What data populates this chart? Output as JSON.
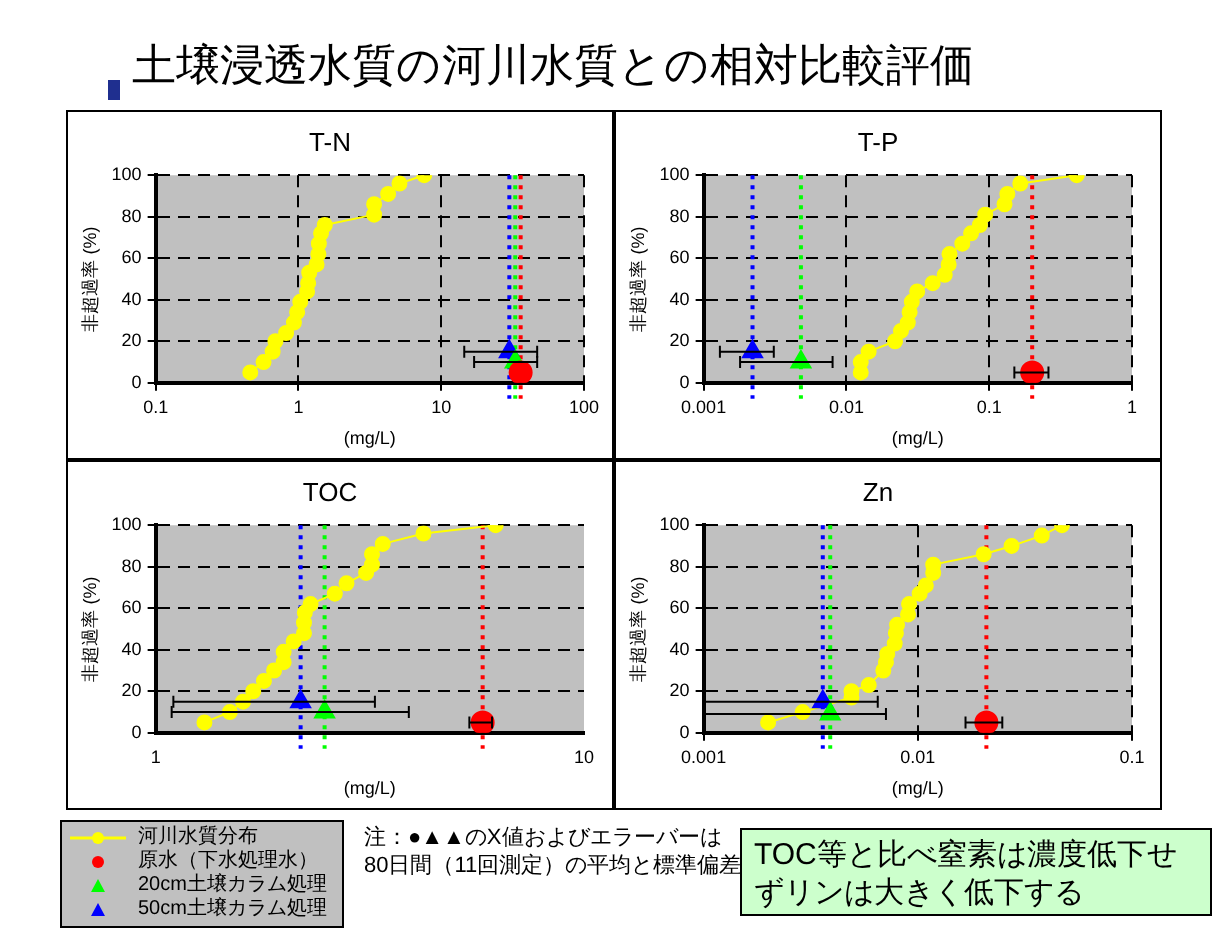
{
  "chart_data": [
    {
      "type": "other",
      "title": "土壌浸透水質の河川水質との相対比較評価",
      "annotations": [
        "注：●▲▲のX値およびエラーバーは80日間（11回測定）の平均と標準偏差",
        "TOC等と比べ窒素は濃度低下せずリンは大きく低下する"
      ]
    },
    {
      "type": "scatter",
      "title": "T-N",
      "xlabel": "(mg/L)",
      "ylabel": "非超過率 (%)",
      "log": "x",
      "xlim": [
        0.1,
        100
      ],
      "xticks": [
        0.1,
        1,
        10,
        100
      ],
      "ylim": [
        0,
        100
      ],
      "yticks": [
        0,
        20,
        40,
        60,
        80,
        100
      ],
      "grid": true,
      "legend": "bottom",
      "series": [
        {
          "name": "河川水質分布",
          "type": "line",
          "color": "#ffff00",
          "marker": "circle",
          "x": [
            0.46,
            0.57,
            0.66,
            0.69,
            0.82,
            0.93,
            0.98,
            1.03,
            1.15,
            1.17,
            1.19,
            1.34,
            1.38,
            1.39,
            1.44,
            1.53,
            3.39,
            3.39,
            4.25,
            5.1,
            7.6
          ],
          "values": [
            5,
            10,
            15,
            20,
            24,
            29,
            34,
            39,
            44,
            48,
            53,
            57,
            62,
            67,
            72,
            76,
            81,
            86,
            91,
            96,
            100
          ]
        },
        {
          "name": "原水（下水処理水）",
          "type": "scatter",
          "color": "#ff0000",
          "marker": "circle",
          "x": [
            36
          ],
          "values": [
            5
          ],
          "xerrors": [
            null
          ]
        },
        {
          "name": "20cm土壌カラム処理",
          "type": "scatter",
          "color": "#00ff00",
          "marker": "triangle",
          "x": [
            33
          ],
          "values": [
            10
          ],
          "xerrors": [
            [
              17,
              47
            ]
          ]
        },
        {
          "name": "50cm土壌カラム処理",
          "type": "scatter",
          "color": "#0000ff",
          "marker": "triangle",
          "x": [
            30
          ],
          "values": [
            15
          ],
          "xerrors": [
            [
              14.5,
              47
            ]
          ]
        }
      ],
      "ref_lines": [
        {
          "axis": "x",
          "value": 36,
          "color": "#ff0000",
          "line_style": "dotted"
        },
        {
          "axis": "x",
          "value": 33,
          "color": "#00ff00",
          "line_style": "dotted"
        },
        {
          "axis": "x",
          "value": 30,
          "color": "#0000ff",
          "line_style": "dotted"
        }
      ]
    },
    {
      "type": "scatter",
      "title": "T-P",
      "xlabel": "(mg/L)",
      "ylabel": "非超過率 (%)",
      "log": "x",
      "xlim": [
        0.001,
        1
      ],
      "xticks": [
        0.001,
        0.01,
        0.1,
        1
      ],
      "ylim": [
        0,
        100
      ],
      "yticks": [
        0,
        20,
        40,
        60,
        80,
        100
      ],
      "grid": true,
      "series": [
        {
          "type": "line",
          "color": "#ffff00",
          "marker": "circle",
          "x": [
            0.0126,
            0.0126,
            0.0143,
            0.0219,
            0.0241,
            0.0269,
            0.0277,
            0.0287,
            0.0313,
            0.0402,
            0.0488,
            0.052,
            0.0527,
            0.0648,
            0.0746,
            0.086,
            0.0937,
            0.128,
            0.134,
            0.165,
            0.41
          ],
          "values": [
            5,
            10,
            15,
            20,
            25,
            29,
            34,
            39,
            44,
            48,
            52,
            57,
            62,
            67,
            72,
            76,
            81,
            86,
            91,
            96,
            100
          ]
        },
        {
          "type": "scatter",
          "color": "#ff0000",
          "marker": "circle",
          "x": [
            0.2
          ],
          "values": [
            5
          ],
          "xerrors": [
            [
              0.15,
              0.26
            ]
          ]
        },
        {
          "type": "scatter",
          "color": "#00ff00",
          "marker": "triangle",
          "x": [
            0.0048
          ],
          "values": [
            10
          ],
          "xerrors": [
            [
              0.0018,
              0.008
            ]
          ]
        },
        {
          "type": "scatter",
          "color": "#0000ff",
          "marker": "triangle",
          "x": [
            0.0022
          ],
          "values": [
            15
          ],
          "xerrors": [
            [
              0.0013,
              0.0031
            ]
          ]
        }
      ],
      "ref_lines": [
        {
          "axis": "x",
          "value": 0.2,
          "color": "#ff0000",
          "line_style": "dotted"
        },
        {
          "axis": "x",
          "value": 0.0048,
          "color": "#00ff00",
          "line_style": "dotted"
        },
        {
          "axis": "x",
          "value": 0.0022,
          "color": "#0000ff",
          "line_style": "dotted"
        }
      ]
    },
    {
      "type": "scatter",
      "title": "TOC",
      "xlabel": "(mg/L)",
      "ylabel": "非超過率 (%)",
      "log": "x",
      "xlim": [
        1,
        10
      ],
      "xticks": [
        1,
        10
      ],
      "ylim": [
        0,
        100
      ],
      "yticks": [
        0,
        20,
        40,
        60,
        80,
        100
      ],
      "grid": "y",
      "series": [
        {
          "type": "line",
          "color": "#ffff00",
          "marker": "circle",
          "x": [
            1.3,
            1.49,
            1.6,
            1.69,
            1.79,
            1.89,
            1.99,
            1.99,
            2.1,
            2.22,
            2.22,
            2.23,
            2.3,
            2.62,
            2.79,
            3.1,
            3.2,
            3.2,
            3.39,
            4.22,
            6.22
          ],
          "values": [
            5,
            10,
            15,
            20,
            25,
            30,
            34,
            39,
            44,
            48,
            53,
            58,
            62,
            67,
            72,
            77,
            81,
            86,
            91,
            96,
            100
          ]
        },
        {
          "type": "scatter",
          "color": "#ff0000",
          "marker": "circle",
          "x": [
            5.8
          ],
          "values": [
            5
          ],
          "xerrors": [
            [
              5.4,
              6.1
            ]
          ]
        },
        {
          "type": "scatter",
          "color": "#00ff00",
          "marker": "triangle",
          "x": [
            2.48
          ],
          "values": [
            10
          ],
          "xerrors": [
            [
              1.09,
              3.9
            ]
          ]
        },
        {
          "type": "scatter",
          "color": "#0000ff",
          "marker": "triangle",
          "x": [
            2.18
          ],
          "values": [
            15
          ],
          "xerrors": [
            [
              1.1,
              3.25
            ]
          ]
        }
      ],
      "ref_lines": [
        {
          "axis": "x",
          "value": 5.8,
          "color": "#ff0000",
          "line_style": "dotted"
        },
        {
          "axis": "x",
          "value": 2.48,
          "color": "#00ff00",
          "line_style": "dotted"
        },
        {
          "axis": "x",
          "value": 2.18,
          "color": "#0000ff",
          "line_style": "dotted"
        }
      ]
    },
    {
      "type": "scatter",
      "title": "Zn",
      "xlabel": "(mg/L)",
      "ylabel": "非超過率 (%)",
      "log": "x",
      "xlim": [
        0.001,
        0.1
      ],
      "xticks": [
        0.001,
        0.01,
        0.1
      ],
      "ylim": [
        0,
        100
      ],
      "yticks": [
        0,
        20,
        40,
        60,
        80,
        100
      ],
      "grid": true,
      "series": [
        {
          "type": "line",
          "color": "#ffff00",
          "marker": "circle",
          "x": [
            0.002,
            0.0029,
            0.0049,
            0.0049,
            0.0059,
            0.0069,
            0.0071,
            0.0072,
            0.0078,
            0.0079,
            0.008,
            0.009,
            0.0091,
            0.0102,
            0.0109,
            0.0118,
            0.0118,
            0.0203,
            0.0274,
            0.0379,
            0.0471
          ],
          "values": [
            5,
            10,
            17,
            20,
            23,
            30,
            34,
            38,
            43,
            48,
            52,
            57,
            62,
            67,
            71,
            77,
            81,
            86,
            90,
            95,
            100
          ]
        },
        {
          "type": "scatter",
          "color": "#ff0000",
          "marker": "circle",
          "x": [
            0.0209
          ],
          "values": [
            5
          ],
          "xerrors": [
            [
              0.0167,
              0.0248
            ]
          ]
        },
        {
          "type": "scatter",
          "color": "#00ff00",
          "marker": "triangle",
          "x": [
            0.0039
          ],
          "values": [
            9
          ],
          "xerrors": [
            [
              0.001,
              0.0071
            ]
          ]
        },
        {
          "type": "scatter",
          "color": "#0000ff",
          "marker": "triangle",
          "x": [
            0.0036
          ],
          "values": [
            15
          ],
          "xerrors": [
            [
              0.001,
              0.0065
            ]
          ]
        }
      ],
      "ref_lines": [
        {
          "axis": "x",
          "value": 0.0209,
          "color": "#ff0000",
          "line_style": "dotted"
        },
        {
          "axis": "x",
          "value": 0.0039,
          "color": "#00ff00",
          "line_style": "dotted"
        },
        {
          "axis": "x",
          "value": 0.0036,
          "color": "#0000ff",
          "line_style": "dotted"
        }
      ]
    }
  ]
}
